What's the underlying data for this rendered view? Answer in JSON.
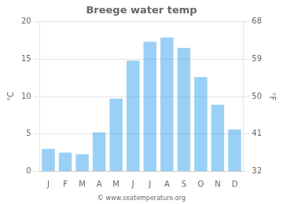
{
  "chart_data": {
    "type": "bar",
    "title": "Breege water temp",
    "categories": [
      "J",
      "F",
      "M",
      "A",
      "M",
      "J",
      "J",
      "A",
      "S",
      "O",
      "N",
      "D"
    ],
    "values": [
      3.0,
      2.5,
      2.3,
      5.2,
      9.7,
      14.8,
      17.3,
      17.9,
      16.5,
      12.6,
      8.9,
      5.6
    ],
    "ylim": [
      0,
      20
    ],
    "yticks": [
      0,
      5,
      10,
      15,
      20
    ],
    "y2lim": [
      32,
      68
    ],
    "y2ticks": [
      32,
      41,
      50,
      59,
      68
    ],
    "ylabel": "°C",
    "y2label": "°F",
    "grid": true,
    "annotations": [
      "© www.seatemperature.org"
    ]
  }
}
